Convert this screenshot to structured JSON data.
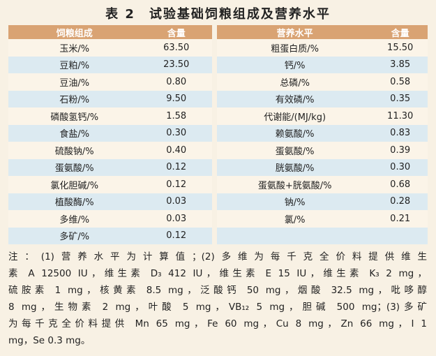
{
  "title": "表 2　试验基础饲粮组成及营养水平",
  "left_table": {
    "header": [
      "饲粮组成",
      "含量"
    ],
    "rows": [
      [
        "玉米/%",
        "63.50"
      ],
      [
        "豆粕/%",
        "23.50"
      ],
      [
        "豆油/%",
        "0.80"
      ],
      [
        "石粉/%",
        "9.50"
      ],
      [
        "磷酸氢钙/%",
        "1.58"
      ],
      [
        "食盐/%",
        "0.30"
      ],
      [
        "硫酸钠/%",
        "0.40"
      ],
      [
        "蛋氨酸/%",
        "0.12"
      ],
      [
        "氯化胆碱/%",
        "0.12"
      ],
      [
        "植酸酶/%",
        "0.03"
      ],
      [
        "多维/%",
        "0.03"
      ],
      [
        "多矿/%",
        "0.12"
      ]
    ]
  },
  "right_table": {
    "header": [
      "营养水平",
      "含量"
    ],
    "rows": [
      [
        "粗蛋白质/%",
        "15.50"
      ],
      [
        "钙/%",
        "3.85"
      ],
      [
        "总磷/%",
        "0.58"
      ],
      [
        "有效磷/%",
        "0.35"
      ],
      [
        "代谢能/(MJ/kg)",
        "11.30"
      ],
      [
        "赖氨酸/%",
        "0.83"
      ],
      [
        "蛋氨酸/%",
        "0.39"
      ],
      [
        "胱氨酸/%",
        "0.30"
      ],
      [
        "蛋氨酸+胱氨酸/%",
        "0.68"
      ],
      [
        "钠/%",
        "0.28"
      ],
      [
        "氯/%",
        "0.21"
      ]
    ]
  },
  "note": [
    "注：(1)营养水平为计算值；(2)多维为每千克全价料提供维生",
    "素 A 12500 IU，维生素 D₃ 412 IU，维生素 E 15 IU，维生素 K₃ 2 mg，",
    "硫胺素 1 mg，核黄素 8.5 mg，泛酸钙 50 mg，烟酸 32.5 mg，吡哆醇",
    "8 mg，生物素 2 mg，叶酸 5 mg，VB₁₂ 5 mg，胆碱 500 mg；(3)多矿",
    "为每千克全价料提供 Mn 65 mg，Fe 60 mg，Cu 8 mg，Zn 66 mg，I 1",
    "mg，Se 0.3 mg。"
  ]
}
